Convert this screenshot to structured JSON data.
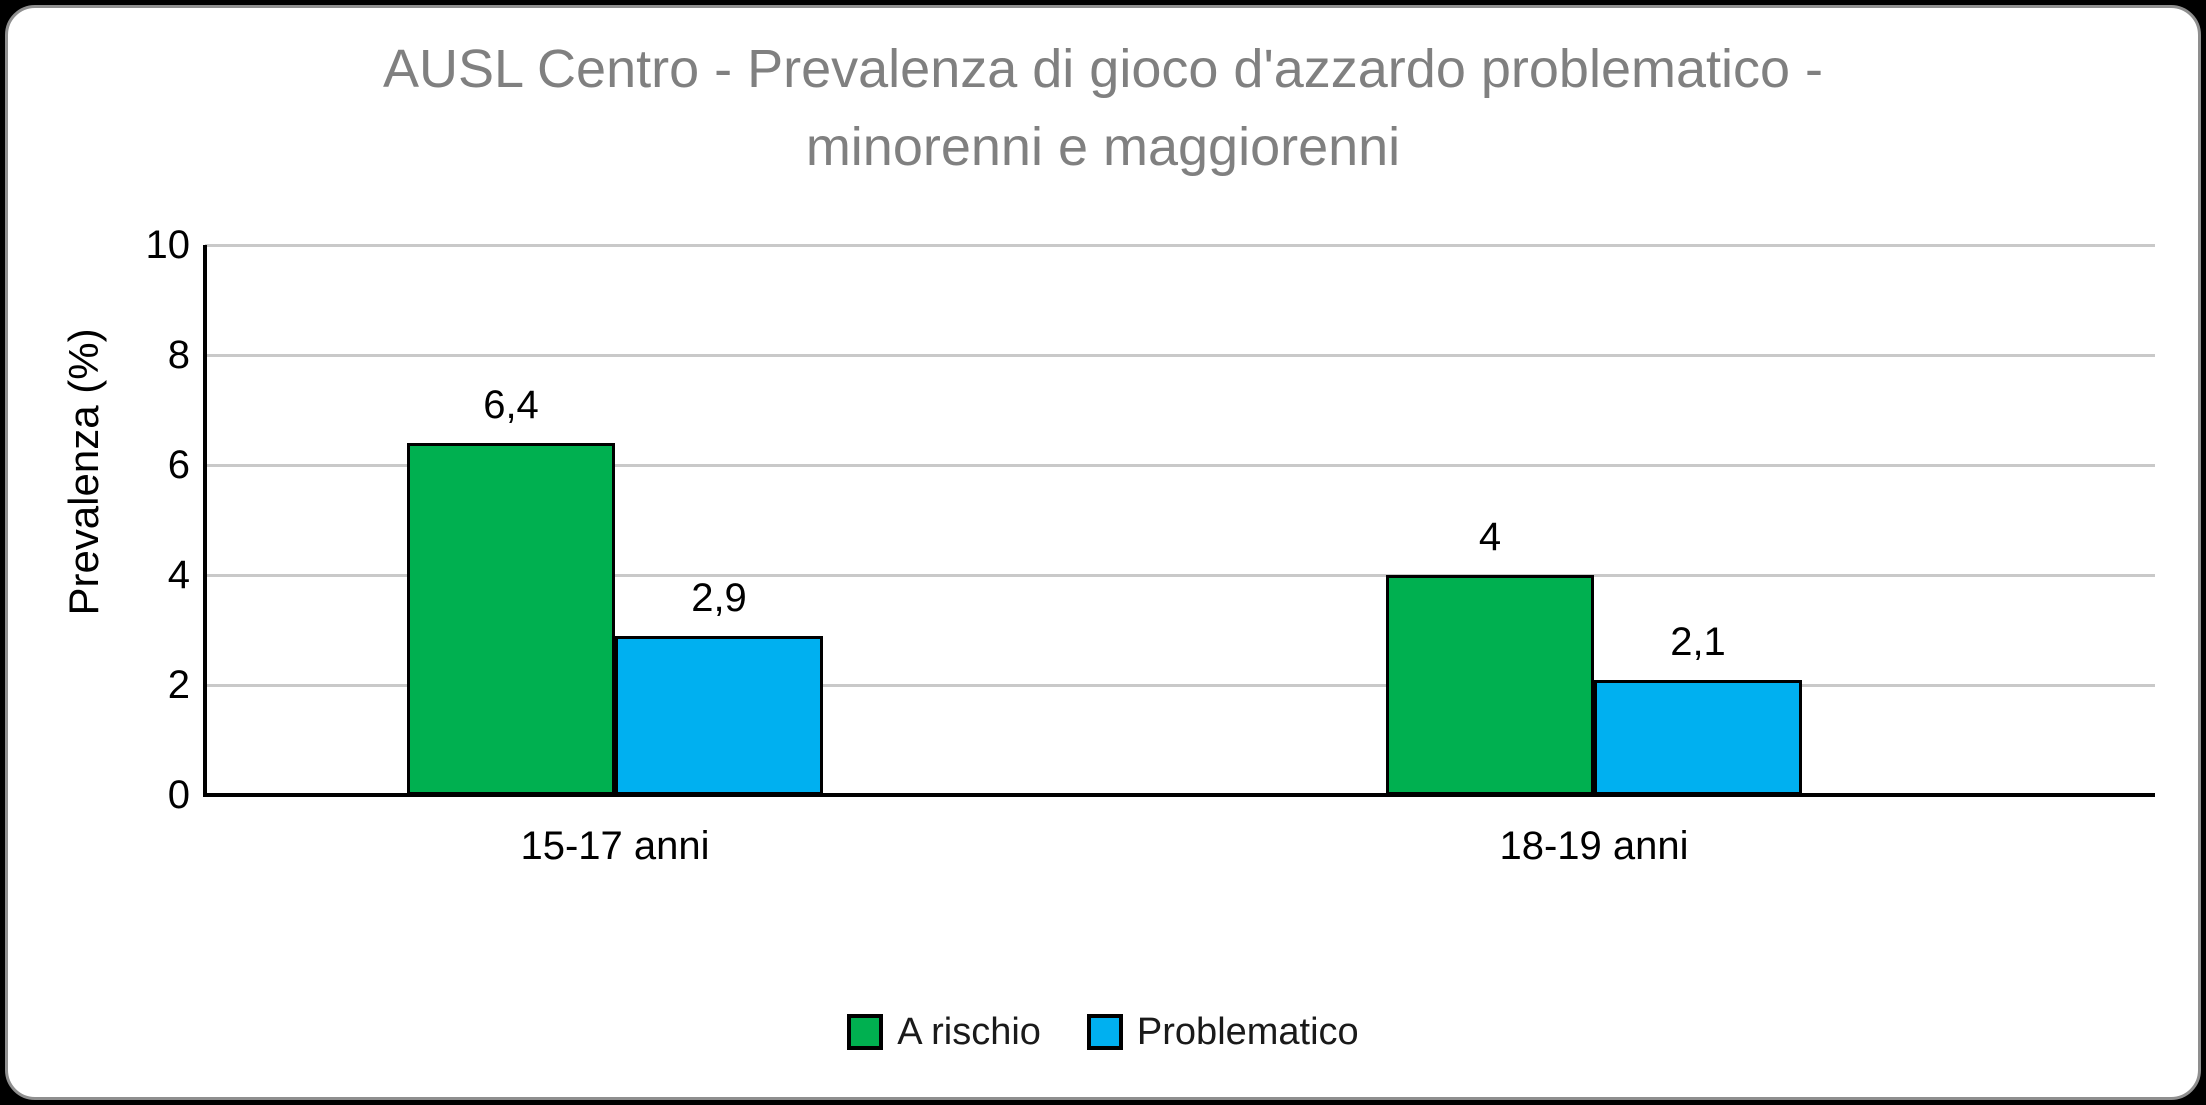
{
  "chart_data": {
    "type": "bar",
    "title": "AUSL Centro - Prevalenza di gioco d'azzardo problematico - minorenni e maggiorenni",
    "title_lines": [
      "AUSL Centro - Prevalenza di gioco d'azzardo problematico -",
      "minorenni e maggiorenni"
    ],
    "ylabel": "Prevalenza (%)",
    "ylim": [
      0,
      10
    ],
    "yticks": [
      0,
      2,
      4,
      6,
      8,
      10
    ],
    "grid": true,
    "legend_position": "bottom",
    "categories": [
      "15-17 anni",
      "18-19 anni"
    ],
    "series": [
      {
        "name": "A rischio",
        "color": "#00B050",
        "values": [
          6.4,
          4.0
        ],
        "labels": [
          "6,4",
          "4"
        ]
      },
      {
        "name": "Problematico",
        "color": "#00B0F0",
        "values": [
          2.9,
          2.1
        ],
        "labels": [
          "2,9",
          "2,1"
        ]
      }
    ],
    "colors": {
      "title": "#808080",
      "grid": "#C9C9C9",
      "axis": "#000000",
      "bar_border": "#000000",
      "background": "#FFFFFF",
      "page_background": "#000000"
    }
  }
}
